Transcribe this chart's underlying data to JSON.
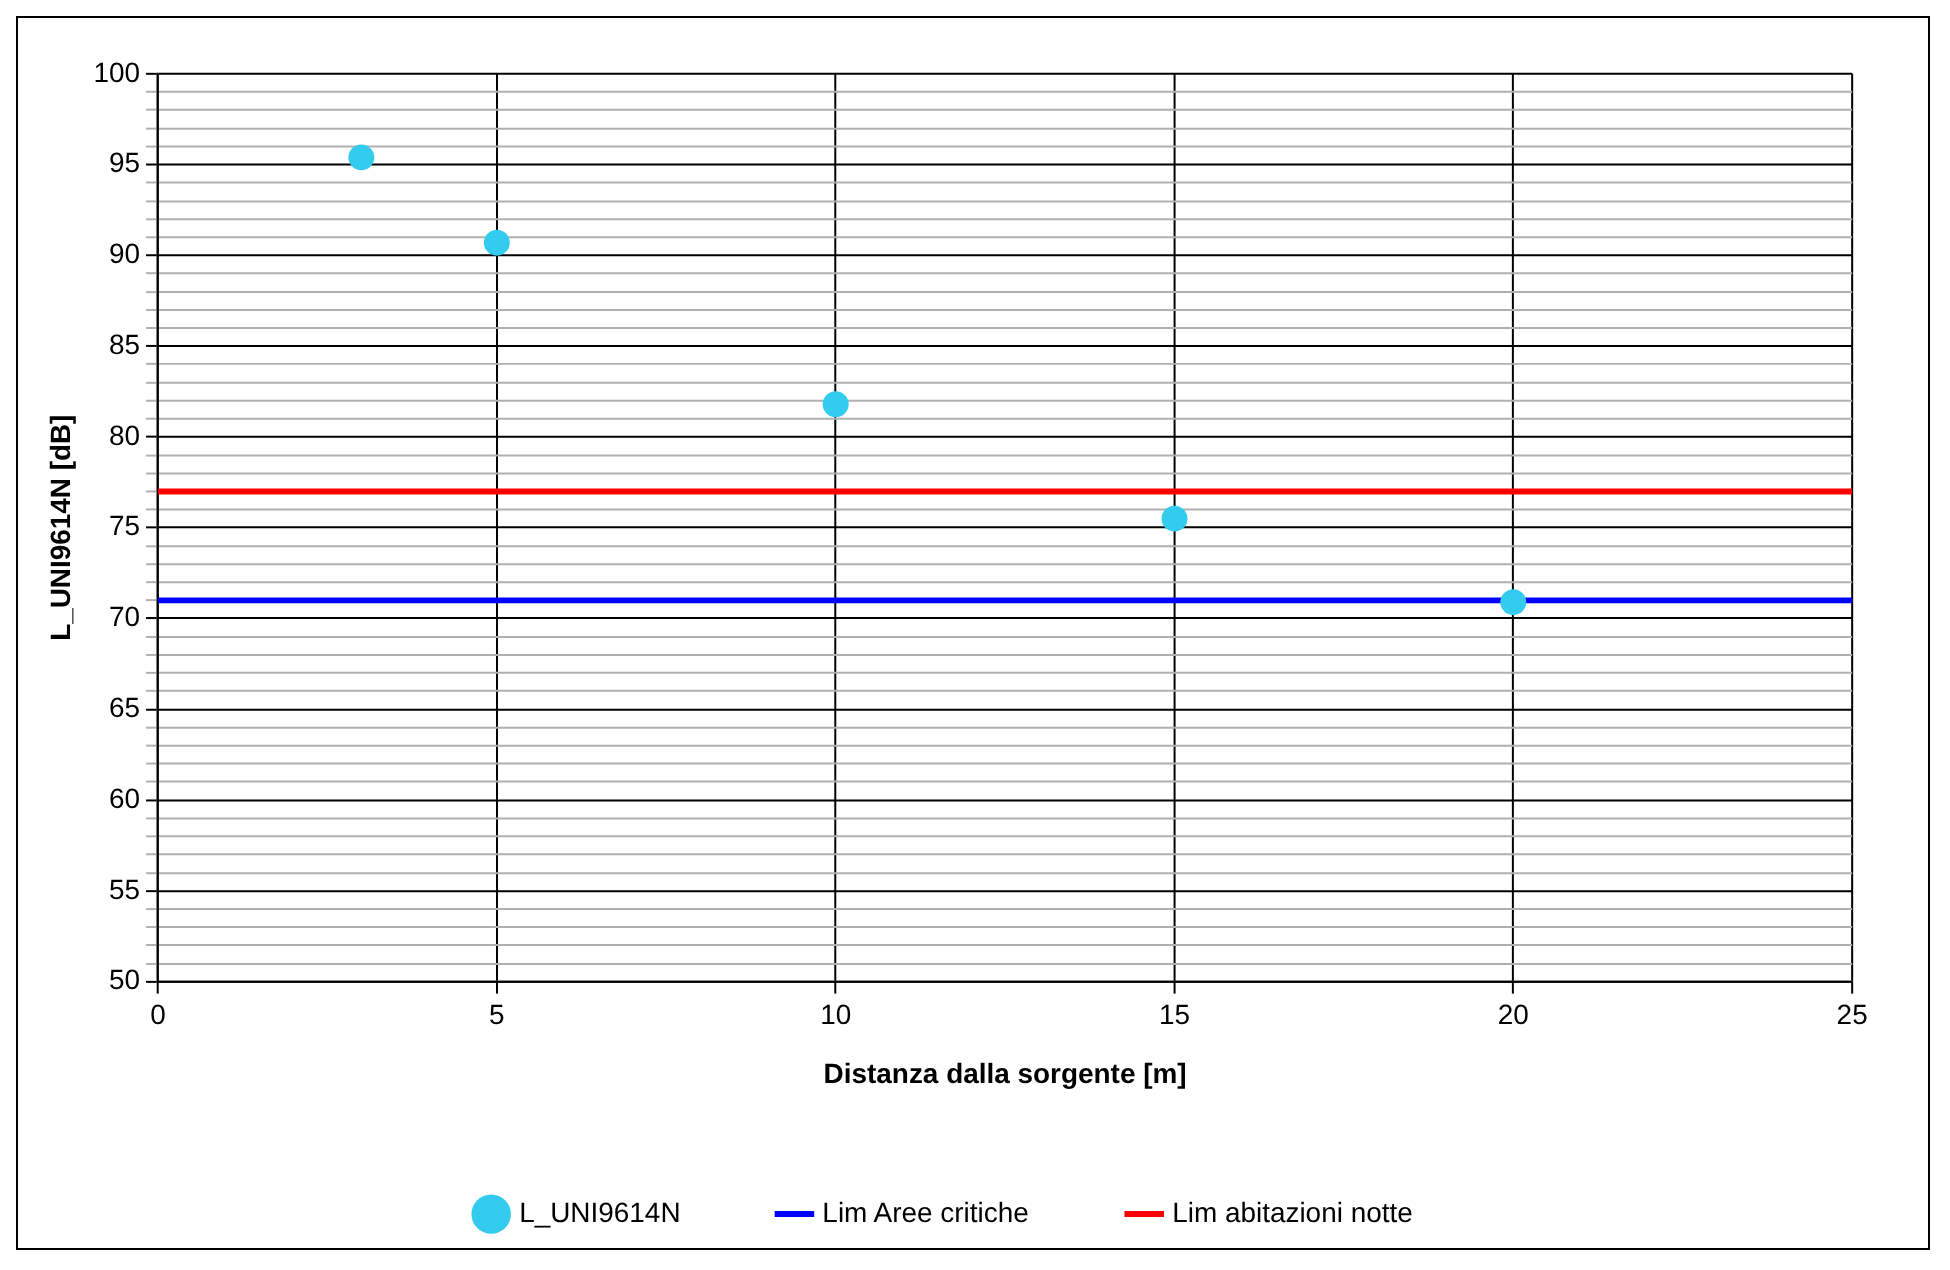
{
  "chart_data": {
    "type": "scatter",
    "xlabel": "Distanza dalla sorgente [m]",
    "ylabel": "L_UNI9614N [dB]",
    "series": [
      {
        "name": "L_UNI9614N",
        "color": "#33ccee",
        "x": [
          3,
          5,
          10,
          15,
          20
        ],
        "values": [
          95.4,
          90.7,
          81.8,
          75.5,
          70.9
        ]
      },
      {
        "name": "Lim Aree critiche",
        "type": "line",
        "color": "#0000ff",
        "x": [
          0,
          25
        ],
        "values": [
          71,
          71
        ],
        "marker": "none"
      },
      {
        "name": "Lim abitazioni notte",
        "type": "line",
        "color": "#ff0000",
        "x": [
          0,
          25
        ],
        "values": [
          77,
          77
        ],
        "marker": "none"
      }
    ],
    "xlim": [
      0,
      25
    ],
    "xticks": [
      0,
      5,
      10,
      15,
      20,
      25
    ],
    "ylim": [
      50,
      100
    ],
    "yticks": [
      50,
      {
        "value": 51,
        "label": null
      },
      {
        "value": 52,
        "label": null
      },
      {
        "value": 53,
        "label": null
      },
      {
        "value": 54,
        "label": null
      },
      55,
      {
        "value": 56,
        "label": null
      },
      {
        "value": 57,
        "label": null
      },
      {
        "value": 58,
        "label": null
      },
      {
        "value": 59,
        "label": null
      },
      60,
      {
        "value": 61,
        "label": null
      },
      {
        "value": 62,
        "label": null
      },
      {
        "value": 63,
        "label": null
      },
      {
        "value": 64,
        "label": null
      },
      65,
      {
        "value": 66,
        "label": null
      },
      {
        "value": 67,
        "label": null
      },
      {
        "value": 68,
        "label": null
      },
      {
        "value": 69,
        "label": null
      },
      70,
      {
        "value": 71,
        "label": null
      },
      {
        "value": 72,
        "label": null
      },
      {
        "value": 73,
        "label": null
      },
      {
        "value": 74,
        "label": null
      },
      75,
      {
        "value": 76,
        "label": null
      },
      {
        "value": 77,
        "label": null
      },
      {
        "value": 78,
        "label": null
      },
      {
        "value": 79,
        "label": null
      },
      80,
      {
        "value": 81,
        "label": null
      },
      {
        "value": 82,
        "label": null
      },
      {
        "value": 83,
        "label": null
      },
      {
        "value": 84,
        "label": null
      },
      85,
      {
        "value": 86,
        "label": null
      },
      {
        "value": 87,
        "label": null
      },
      {
        "value": 88,
        "label": null
      },
      {
        "value": 89,
        "label": null
      },
      90,
      {
        "value": 91,
        "label": null
      },
      {
        "value": 92,
        "label": null
      },
      {
        "value": 93,
        "label": null
      },
      {
        "value": 94,
        "label": null
      },
      95,
      {
        "value": 96,
        "label": null
      },
      {
        "value": 97,
        "label": null
      },
      {
        "value": 98,
        "label": null
      },
      {
        "value": 99,
        "label": null
      },
      100
    ],
    "grid": true,
    "legend": "bottom",
    "marker": "circle"
  }
}
